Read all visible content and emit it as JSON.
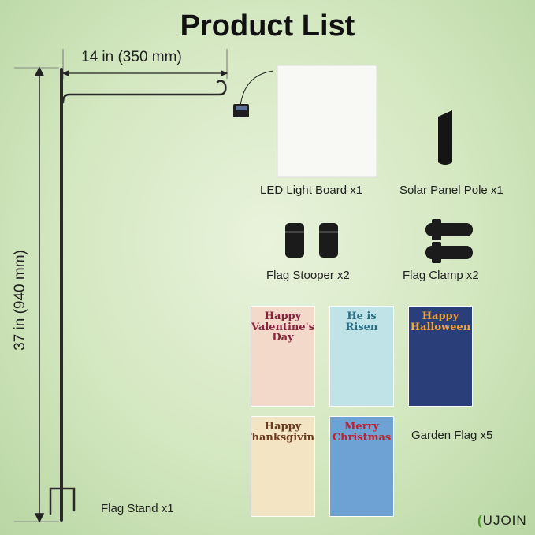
{
  "title": "Product List",
  "dimensions": {
    "width_label": "14 in (350 mm)",
    "height_label": "37 in (940 mm)"
  },
  "items": {
    "flag_stand": "Flag Stand x1",
    "led_board": "LED Light Board x1",
    "solar_pole": "Solar Panel Pole x1",
    "stooper": "Flag Stooper x2",
    "clamp": "Flag Clamp x2",
    "garden_flag": "Garden Flag x5"
  },
  "flags": [
    {
      "text": "Happy Valentine's Day",
      "color": "#f3d9c9",
      "text_color": "#8a2340"
    },
    {
      "text": "He is Risen",
      "color": "#bfe3e6",
      "text_color": "#2a6f86"
    },
    {
      "text": "Happy Halloween",
      "color": "#2a3f7a",
      "text_color": "#f2a23a"
    },
    {
      "text": "Happy Thanksgiving",
      "color": "#f3e4c4",
      "text_color": "#6a3a1c"
    },
    {
      "text": "Merry Christmas",
      "color": "#6fa2d4",
      "text_color": "#c21f2b"
    }
  ],
  "logo": "UJOIN"
}
